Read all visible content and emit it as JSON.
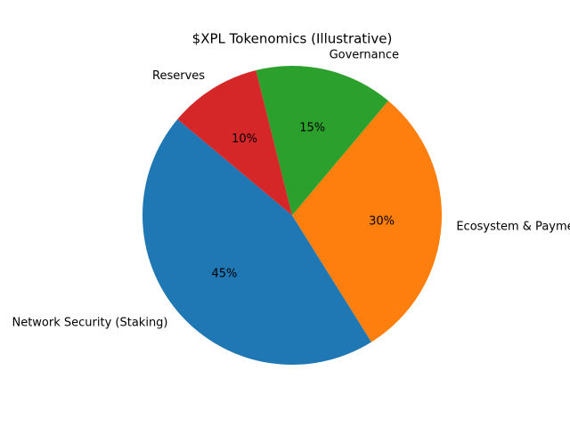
{
  "chart_data": {
    "type": "pie",
    "title": "$XPL Tokenomics (Illustrative)",
    "categories": [
      "Network Security (Staking)",
      "Ecosystem & Payments",
      "Governance",
      "Reserves"
    ],
    "values": [
      45,
      30,
      15,
      10
    ],
    "value_labels": [
      "45%",
      "30%",
      "15%",
      "10%"
    ],
    "colors": [
      "#1f77b4",
      "#ff7f0e",
      "#2ca02c",
      "#d62728"
    ],
    "start_angle": 140
  }
}
